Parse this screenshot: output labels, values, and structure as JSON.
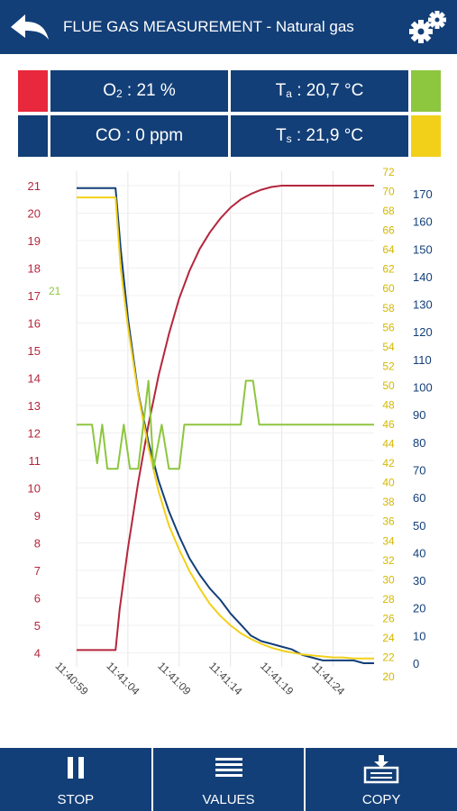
{
  "header": {
    "title": "FLUE GAS MEASUREMENT - Natural gas",
    "back_icon": "back-arrow-icon",
    "settings_icon": "gears-icon"
  },
  "readouts": {
    "o2": {
      "symbol": "O",
      "sub": "2",
      "value": " : 21 %",
      "swatch_color": "#e8283c"
    },
    "ta": {
      "symbol": "T",
      "sub": "a",
      "value": " : 20,7 °C",
      "swatch_color": "#8dc63f"
    },
    "co": {
      "symbol": "CO",
      "sub": "",
      "value": " : 0 ppm",
      "swatch_color": "#133f78"
    },
    "ts": {
      "symbol": "T",
      "sub": "s",
      "value": " : 21,9 °C",
      "swatch_color": "#f2d01a"
    }
  },
  "chart_data": {
    "type": "line",
    "x_ticks": [
      "11:40:59",
      "11:41:04",
      "11:41:09",
      "11:41:14",
      "11:41:19",
      "11:41:24"
    ],
    "axes": {
      "o2_axis": {
        "color": "#b5263d",
        "range": [
          3.5,
          21.5
        ],
        "ticks": [
          4,
          5,
          6,
          7,
          8,
          9,
          10,
          11,
          12,
          13,
          14,
          15,
          16,
          17,
          18,
          19,
          20,
          21
        ]
      },
      "ta_axis": {
        "color": "#8dc63f",
        "ticks": [
          21
        ]
      },
      "ts_axis": {
        "color": "#d4b800",
        "range": [
          20,
          72
        ],
        "ticks": [
          20,
          22,
          24,
          26,
          28,
          30,
          32,
          34,
          36,
          38,
          40,
          42,
          44,
          46,
          48,
          50,
          52,
          54,
          56,
          58,
          60,
          62,
          64,
          66,
          68,
          70,
          72
        ]
      },
      "co_axis": {
        "color": "#133f78",
        "range": [
          -5,
          180
        ],
        "ticks": [
          0,
          10,
          20,
          30,
          40,
          50,
          60,
          70,
          80,
          90,
          100,
          110,
          120,
          130,
          140,
          150,
          160,
          170
        ]
      }
    },
    "series": [
      {
        "key": "co",
        "color": "#133f78",
        "axis": "co_axis",
        "points": [
          [
            0,
            172
          ],
          [
            3.8,
            172
          ],
          [
            4.3,
            150
          ],
          [
            5,
            125
          ],
          [
            6,
            98
          ],
          [
            7,
            80
          ],
          [
            8,
            66
          ],
          [
            9,
            55
          ],
          [
            10,
            46
          ],
          [
            11,
            38
          ],
          [
            12,
            32
          ],
          [
            13,
            27
          ],
          [
            14,
            23
          ],
          [
            15,
            18
          ],
          [
            16,
            14
          ],
          [
            17,
            10
          ],
          [
            18,
            8
          ],
          [
            19,
            7
          ],
          [
            20,
            6
          ],
          [
            21,
            5
          ],
          [
            22,
            3
          ],
          [
            23,
            2
          ],
          [
            24,
            1
          ],
          [
            25,
            1
          ],
          [
            26,
            1
          ],
          [
            27,
            1
          ],
          [
            28,
            0
          ],
          [
            29,
            0
          ]
        ]
      },
      {
        "key": "o2",
        "color": "#b5263d",
        "axis": "o2_axis",
        "points": [
          [
            0,
            4.1
          ],
          [
            3.8,
            4.1
          ],
          [
            4.2,
            5.6
          ],
          [
            5,
            7.8
          ],
          [
            6,
            10.2
          ],
          [
            7,
            12.3
          ],
          [
            8,
            14.1
          ],
          [
            9,
            15.6
          ],
          [
            10,
            16.9
          ],
          [
            11,
            17.9
          ],
          [
            12,
            18.7
          ],
          [
            13,
            19.3
          ],
          [
            14,
            19.8
          ],
          [
            15,
            20.2
          ],
          [
            16,
            20.5
          ],
          [
            17,
            20.7
          ],
          [
            18,
            20.85
          ],
          [
            19,
            20.95
          ],
          [
            20,
            21
          ],
          [
            29,
            21
          ]
        ]
      },
      {
        "key": "ts",
        "color": "#f2d01a",
        "axis": "ts_axis",
        "points": [
          [
            0,
            69.3
          ],
          [
            3.8,
            69.3
          ],
          [
            4.3,
            62
          ],
          [
            5,
            56
          ],
          [
            6,
            49
          ],
          [
            7,
            43.5
          ],
          [
            8,
            39
          ],
          [
            9,
            35.5
          ],
          [
            10,
            33
          ],
          [
            11,
            30.8
          ],
          [
            12,
            29
          ],
          [
            13,
            27.4
          ],
          [
            14,
            26.2
          ],
          [
            15,
            25.2
          ],
          [
            16,
            24.4
          ],
          [
            17,
            23.8
          ],
          [
            18,
            23.3
          ],
          [
            19,
            22.9
          ],
          [
            20,
            22.6
          ],
          [
            21,
            22.4
          ],
          [
            22,
            22.2
          ],
          [
            23,
            22.1
          ],
          [
            24,
            22
          ],
          [
            25,
            21.9
          ],
          [
            26,
            21.9
          ],
          [
            27,
            21.8
          ],
          [
            28,
            21.8
          ],
          [
            29,
            21.8
          ]
        ]
      },
      {
        "key": "ta",
        "color": "#8dc63f",
        "axis": "o2_axis",
        "points": [
          [
            0,
            12.3
          ],
          [
            1.5,
            12.3
          ],
          [
            2,
            10.9
          ],
          [
            2.5,
            12.3
          ],
          [
            3,
            10.7
          ],
          [
            4,
            10.7
          ],
          [
            4.6,
            12.3
          ],
          [
            5.2,
            10.7
          ],
          [
            6,
            10.7
          ],
          [
            7,
            13.9
          ],
          [
            7.5,
            10.7
          ],
          [
            8.3,
            12.3
          ],
          [
            9,
            10.7
          ],
          [
            10,
            10.7
          ],
          [
            10.5,
            12.3
          ],
          [
            16,
            12.3
          ],
          [
            16.5,
            13.9
          ],
          [
            17.2,
            13.9
          ],
          [
            17.8,
            12.3
          ],
          [
            29,
            12.3
          ]
        ]
      }
    ]
  },
  "bottom_bar": {
    "stop": {
      "label": "STOP",
      "icon": "pause-icon"
    },
    "values": {
      "label": "VALUES",
      "icon": "list-icon"
    },
    "copy": {
      "label": "COPY",
      "icon": "copy-download-icon"
    }
  }
}
